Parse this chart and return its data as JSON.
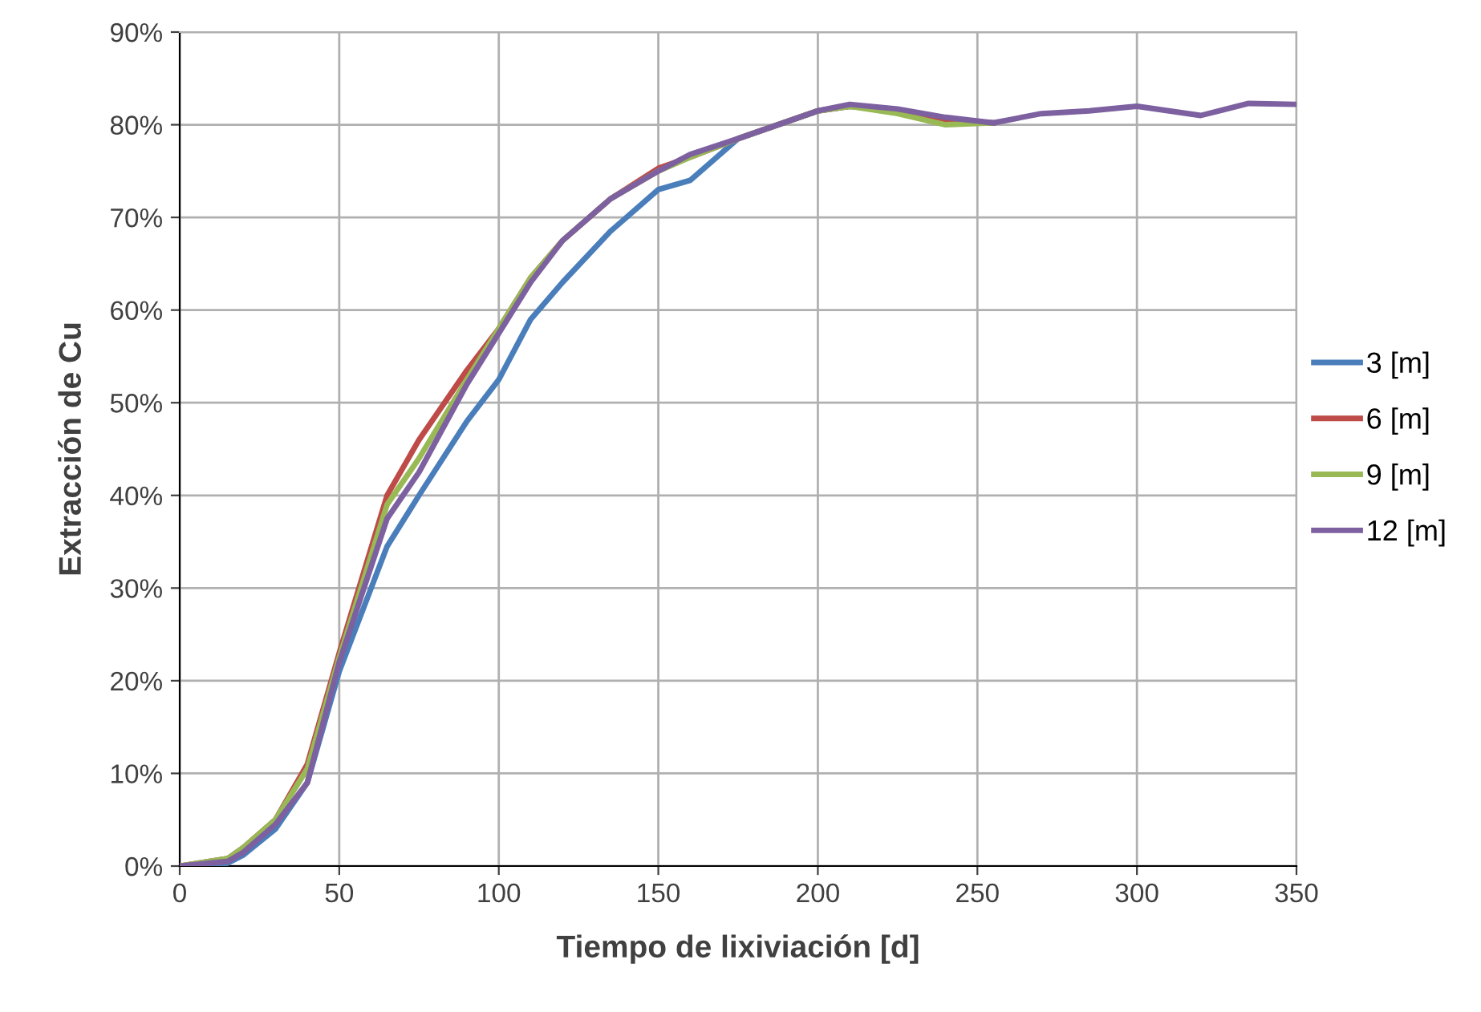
{
  "chart_data": {
    "type": "line",
    "xlabel": "Tiempo de lixiviación [d]",
    "ylabel": "Extracción de Cu",
    "xlim": [
      0,
      350
    ],
    "xticks": [
      0,
      50,
      100,
      150,
      200,
      250,
      300,
      350
    ],
    "ylim": [
      0,
      90
    ],
    "yticks": [
      {
        "value": 0,
        "label": "0%"
      },
      {
        "value": 10,
        "label": "10%"
      },
      {
        "value": 20,
        "label": "20%"
      },
      {
        "value": 30,
        "label": "30%"
      },
      {
        "value": 40,
        "label": "40%"
      },
      {
        "value": 50,
        "label": "50%"
      },
      {
        "value": 60,
        "label": "60%"
      },
      {
        "value": 70,
        "label": "70%"
      },
      {
        "value": 80,
        "label": "80%"
      },
      {
        "value": 90,
        "label": "90%"
      }
    ],
    "grid": true,
    "legend": "right",
    "marker": "none",
    "line_style": "solid",
    "series": [
      {
        "name": "3 [m]",
        "color": "#4a7ebb",
        "x": [
          0,
          15,
          20,
          30,
          40,
          50,
          65,
          75,
          90,
          100,
          110,
          120,
          135,
          150,
          160,
          175,
          200,
          210,
          225,
          240,
          255
        ],
        "values": [
          0,
          0.3,
          1.2,
          4,
          9,
          21,
          34.5,
          40,
          48,
          52.5,
          59,
          63,
          68.5,
          73,
          74,
          78.5,
          81.5,
          82,
          81.5,
          80.5,
          80.2
        ]
      },
      {
        "name": "6 [m]",
        "color": "#be4b48",
        "x": [
          0,
          15,
          20,
          30,
          40,
          50,
          65,
          75,
          90,
          100,
          110,
          120,
          135,
          150,
          160,
          175,
          200,
          210,
          225,
          240,
          255
        ],
        "values": [
          0,
          0.8,
          2,
          5,
          11,
          23,
          40,
          46,
          53.5,
          58,
          63.5,
          67.5,
          72,
          75.3,
          76.5,
          78.5,
          81.5,
          82,
          81.5,
          80.5,
          80.2
        ]
      },
      {
        "name": "9 [m]",
        "color": "#98b954",
        "x": [
          0,
          15,
          20,
          30,
          40,
          50,
          65,
          75,
          90,
          100,
          110,
          120,
          135,
          150,
          160,
          175,
          200,
          210,
          225,
          240,
          255
        ],
        "values": [
          0,
          0.8,
          2,
          5,
          10.5,
          22.5,
          39,
          44,
          52.5,
          58,
          63.5,
          67.5,
          72,
          75,
          76.5,
          78.5,
          81.5,
          82,
          81.2,
          80,
          80.2
        ]
      },
      {
        "name": "12 [m]",
        "color": "#7d60a0",
        "x": [
          0,
          15,
          20,
          30,
          40,
          50,
          65,
          75,
          90,
          100,
          110,
          120,
          135,
          150,
          160,
          175,
          200,
          210,
          225,
          240,
          255,
          270,
          285,
          300,
          310,
          320,
          335,
          350
        ],
        "values": [
          0,
          0.5,
          1.5,
          4.5,
          9,
          22,
          37.5,
          42.5,
          52,
          57.5,
          63,
          67.5,
          72,
          75,
          76.8,
          78.5,
          81.5,
          82.2,
          81.7,
          80.8,
          80.2,
          81.2,
          81.5,
          82,
          81.5,
          81,
          82.3,
          82.2
        ]
      }
    ]
  }
}
